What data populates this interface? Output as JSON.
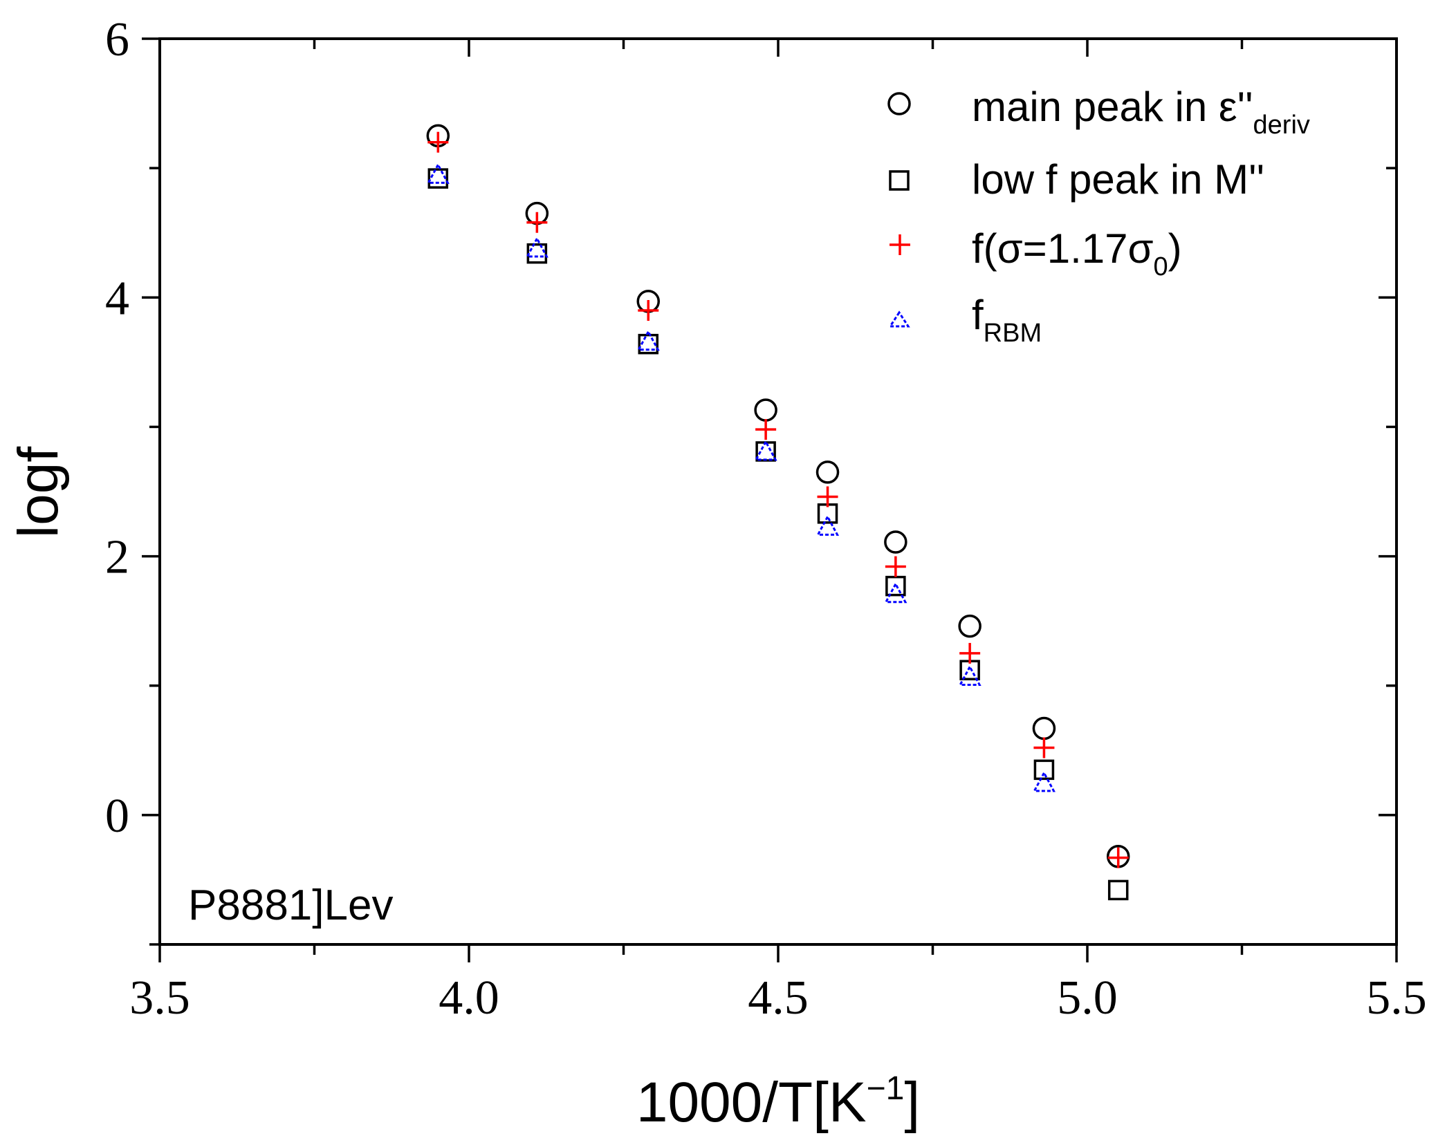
{
  "chart_data": {
    "type": "scatter",
    "title": "",
    "xlabel": "1000/T[K",
    "xlabel_sup": "−1",
    "xlabel_close": "]",
    "ylabel": "logf",
    "xlim": [
      3.5,
      5.5
    ],
    "ylim": [
      -1,
      6
    ],
    "x_ticks": [
      3.5,
      4.0,
      4.5,
      5.0,
      5.5
    ],
    "x_tick_labels": [
      "3.5",
      "4.0",
      "4.5",
      "5.0",
      "5.5"
    ],
    "y_ticks": [
      0,
      2,
      4,
      6
    ],
    "y_tick_labels": [
      "0",
      "2",
      "4",
      "6"
    ],
    "x_minor_step": 0.25,
    "y_minor_step": 1,
    "grid": false,
    "legend_position": "top-right",
    "annotation": "P8881]Lev",
    "series": [
      {
        "name": "main peak in ε''deriv",
        "label_main": " main peak in ε''",
        "label_sub": "deriv",
        "marker": "circle",
        "color": "#000000",
        "x": [
          3.95,
          4.11,
          4.29,
          4.48,
          4.58,
          4.69,
          4.81,
          4.93,
          5.05
        ],
        "y": [
          5.25,
          4.65,
          3.97,
          3.13,
          2.65,
          2.11,
          1.46,
          0.67,
          -0.32
        ]
      },
      {
        "name": "low f peak in M''",
        "label_main": "low f peak in M''",
        "marker": "square",
        "color": "#000000",
        "x": [
          3.95,
          4.11,
          4.29,
          4.48,
          4.58,
          4.69,
          4.81,
          4.93,
          5.05
        ],
        "y": [
          4.92,
          4.34,
          3.64,
          2.81,
          2.33,
          1.77,
          1.12,
          0.35,
          -0.58
        ]
      },
      {
        "name": "f(σ=1.17σ0)",
        "label_main": "f(σ=1.17σ",
        "label_sub": "0",
        "label_close": ")",
        "marker": "plus",
        "color": "#ff0000",
        "x": [
          3.95,
          4.11,
          4.29,
          4.48,
          4.58,
          4.69,
          4.81,
          4.93,
          5.05
        ],
        "y": [
          5.2,
          4.58,
          3.9,
          2.98,
          2.46,
          1.92,
          1.25,
          0.52,
          -0.33
        ]
      },
      {
        "name": "fRBM",
        "label_main": "f",
        "label_sub": "RBM",
        "marker": "triangle",
        "color": "#0000ff",
        "x": [
          3.95,
          4.11,
          4.29,
          4.48,
          4.58,
          4.69,
          4.81,
          4.93
        ],
        "y": [
          4.94,
          4.37,
          3.65,
          2.8,
          2.22,
          1.7,
          1.06,
          0.24
        ]
      }
    ]
  }
}
